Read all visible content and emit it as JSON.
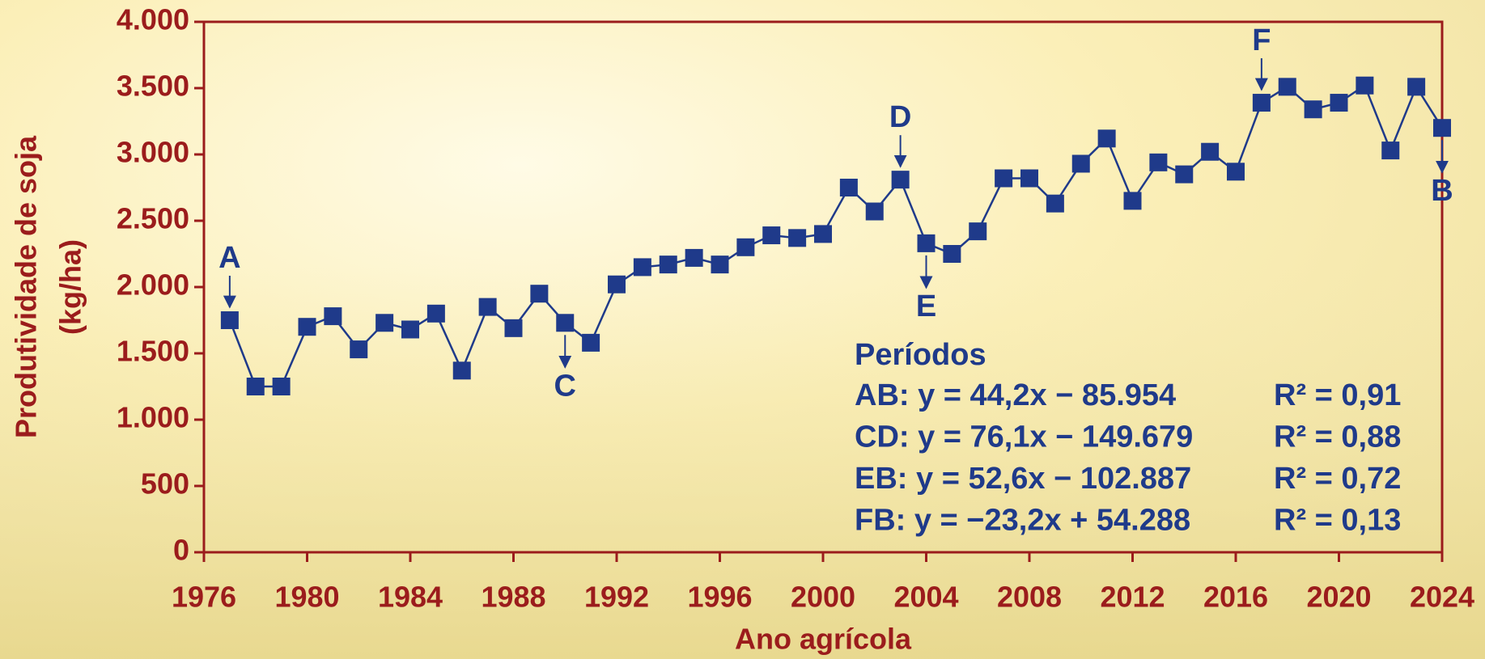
{
  "chart_data": {
    "type": "line",
    "xlabel": "Ano agrícola",
    "ylabel": [
      "Produtividade de soja",
      "(kg/ha)"
    ],
    "x": [
      1977,
      1978,
      1979,
      1980,
      1981,
      1982,
      1983,
      1984,
      1985,
      1986,
      1987,
      1988,
      1989,
      1990,
      1991,
      1992,
      1993,
      1994,
      1995,
      1996,
      1997,
      1998,
      1999,
      2000,
      2001,
      2002,
      2003,
      2004,
      2005,
      2006,
      2007,
      2008,
      2009,
      2010,
      2011,
      2012,
      2013,
      2014,
      2015,
      2016,
      2017,
      2018,
      2019,
      2020,
      2021,
      2022,
      2023,
      2024
    ],
    "series": [
      {
        "color": "#1f3a8a",
        "values": [
          1750,
          1250,
          1250,
          1700,
          1780,
          1530,
          1730,
          1680,
          1800,
          1370,
          1850,
          1690,
          1950,
          1730,
          1580,
          2020,
          2150,
          2170,
          2220,
          2170,
          2300,
          2390,
          2370,
          2400,
          2750,
          2570,
          2810,
          2330,
          2250,
          2420,
          2820,
          2820,
          2630,
          2930,
          3120,
          2650,
          2940,
          2850,
          3020,
          2870,
          3390,
          3510,
          3340,
          3390,
          3520,
          3030,
          3510,
          3200
        ]
      }
    ],
    "xlim": [
      1976,
      2024
    ],
    "xticks": [
      1976,
      1980,
      1984,
      1988,
      1992,
      1996,
      2000,
      2004,
      2008,
      2012,
      2016,
      2020,
      2024
    ],
    "ylim": [
      0,
      4000
    ],
    "yticks": [
      0,
      500,
      {
        "value": 1000,
        "label": "1.000"
      },
      {
        "value": 1500,
        "label": "1.500"
      },
      {
        "value": 2000,
        "label": "2.000"
      },
      {
        "value": 2500,
        "label": "2.500"
      },
      {
        "value": 3000,
        "label": "3.000"
      },
      {
        "value": 3500,
        "label": "3.500"
      },
      {
        "value": 4000,
        "label": "4.000"
      }
    ],
    "axis_color": "#9b1c1c",
    "annotations": [
      {
        "text": "A",
        "x": 1977,
        "position": "above"
      },
      {
        "text": "C",
        "x": 1990,
        "position": "below"
      },
      {
        "text": "D",
        "x": 2003,
        "position": "above"
      },
      {
        "text": "E",
        "x": 2004,
        "position": "below"
      },
      {
        "text": "F",
        "x": 2017,
        "position": "above"
      },
      {
        "text": "B",
        "x": 2024,
        "position": "below"
      }
    ],
    "periods": {
      "title": "Períodos",
      "rows": [
        {
          "equation": "AB: y = 44,2x − 85.954",
          "r2": "R² = 0,91"
        },
        {
          "equation": "CD: y = 76,1x − 149.679",
          "r2": "R² = 0,88"
        },
        {
          "equation": "EB: y = 52,6x − 102.887",
          "r2": "R² = 0,72"
        },
        {
          "equation": "FB: y = −23,2x + 54.288",
          "r2": "R² = 0,13"
        }
      ]
    }
  }
}
